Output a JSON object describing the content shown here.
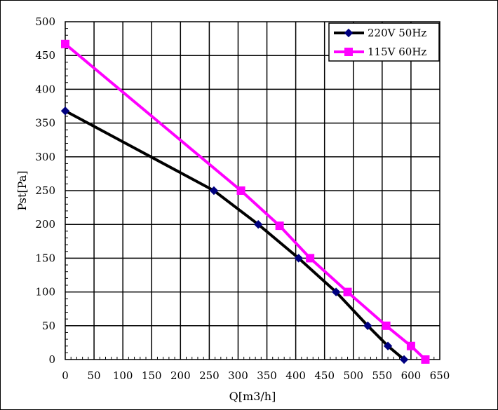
{
  "chart_data": {
    "type": "line",
    "title": "",
    "xlabel": "Q[m3/h]",
    "ylabel": "Pst[Pa]",
    "xlim": [
      0,
      650
    ],
    "ylim": [
      0,
      500
    ],
    "x_ticks": [
      0,
      50,
      100,
      150,
      200,
      250,
      300,
      350,
      400,
      450,
      500,
      550,
      600,
      650
    ],
    "y_ticks": [
      0,
      50,
      100,
      150,
      200,
      250,
      300,
      350,
      400,
      450,
      500
    ],
    "x_tick_labels": [
      "0",
      "50",
      "100",
      "150",
      "200",
      "250",
      "300",
      "350",
      "400",
      "450",
      "500",
      "550",
      "600",
      "650"
    ],
    "y_tick_labels": [
      "0",
      "50",
      "100",
      "150",
      "200",
      "250",
      "300",
      "350",
      "400",
      "450",
      "500"
    ],
    "grid": true,
    "legend_position": "top-right",
    "series": [
      {
        "name": "220V 50Hz",
        "color": "#000000",
        "marker": "diamond",
        "marker_color": "#000080",
        "x": [
          0,
          258,
          335,
          405,
          470,
          525,
          560,
          588
        ],
        "y": [
          368,
          250,
          200,
          150,
          100,
          50,
          20,
          0
        ]
      },
      {
        "name": "115V 60Hz",
        "color": "#ff00ff",
        "marker": "square",
        "marker_color": "#ff00ff",
        "x": [
          0,
          305,
          372,
          425,
          490,
          557,
          600,
          625
        ],
        "y": [
          467,
          250,
          198,
          150,
          100,
          50,
          20,
          0
        ]
      }
    ]
  }
}
